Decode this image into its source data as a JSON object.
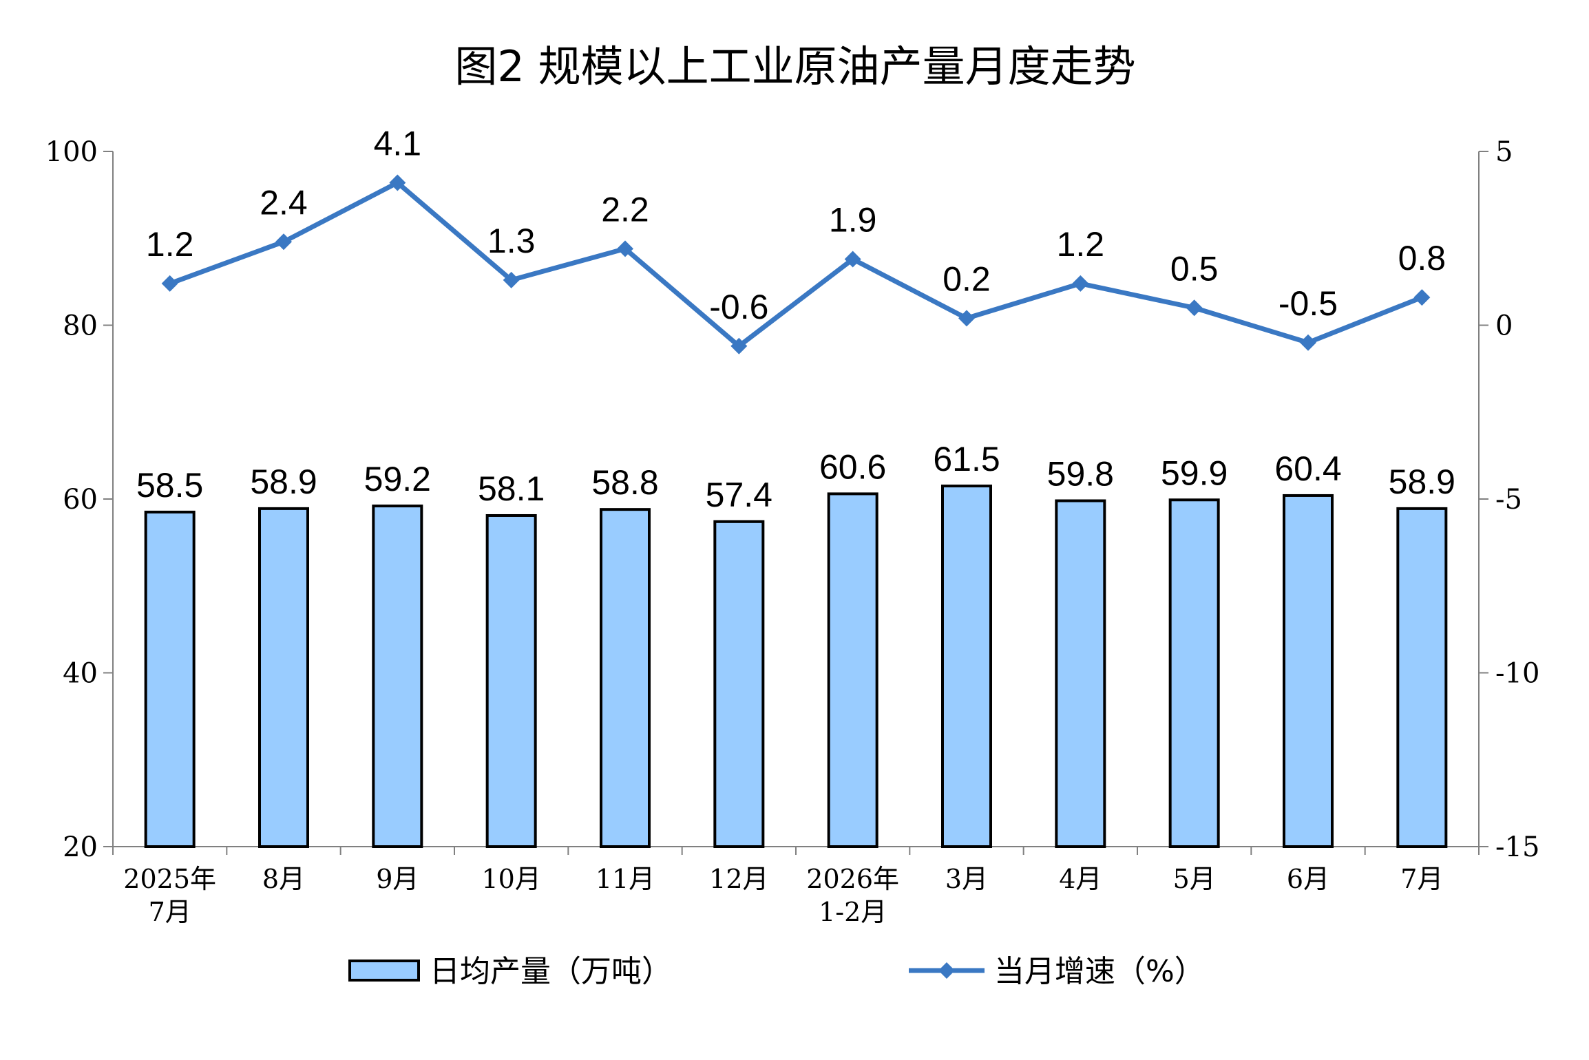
{
  "chart_data": {
    "type": "bar",
    "title": "图2  规模以上工业原油产量月度走势",
    "categories": [
      [
        "2025年",
        "7月"
      ],
      [
        "8月"
      ],
      [
        "9月"
      ],
      [
        "10月"
      ],
      [
        "11月"
      ],
      [
        "12月"
      ],
      [
        "2026年",
        "1-2月"
      ],
      [
        "3月"
      ],
      [
        "4月"
      ],
      [
        "5月"
      ],
      [
        "6月"
      ],
      [
        "7月"
      ]
    ],
    "y_left": {
      "min": 20,
      "max": 100,
      "ticks": [
        20,
        40,
        60,
        80,
        100
      ]
    },
    "y_right": {
      "min": -15,
      "max": 5,
      "ticks": [
        -15,
        -10,
        -5,
        0,
        5
      ]
    },
    "series": [
      {
        "name": "日均产量（万吨）",
        "type": "bar",
        "axis": "left",
        "color": "#99CCFF",
        "values": [
          58.5,
          58.9,
          59.2,
          58.1,
          58.8,
          57.4,
          60.6,
          61.5,
          59.8,
          59.9,
          60.4,
          58.9
        ],
        "labels": [
          "58.5",
          "58.9",
          "59.2",
          "58.1",
          "58.8",
          "57.4",
          "60.6",
          "61.5",
          "59.8",
          "59.9",
          "60.4",
          "58.9"
        ]
      },
      {
        "name": "当月增速（%）",
        "type": "line",
        "axis": "right",
        "color": "#3A78C3",
        "values": [
          1.2,
          2.4,
          4.1,
          1.3,
          2.2,
          -0.6,
          1.9,
          0.2,
          1.2,
          0.5,
          -0.5,
          0.8
        ],
        "labels": [
          "1.2",
          "2.4",
          "4.1",
          "1.3",
          "2.2",
          "-0.6",
          "1.9",
          "0.2",
          "1.2",
          "0.5",
          "-0.5",
          "0.8"
        ]
      }
    ],
    "grid": false,
    "legend": "bottom"
  }
}
